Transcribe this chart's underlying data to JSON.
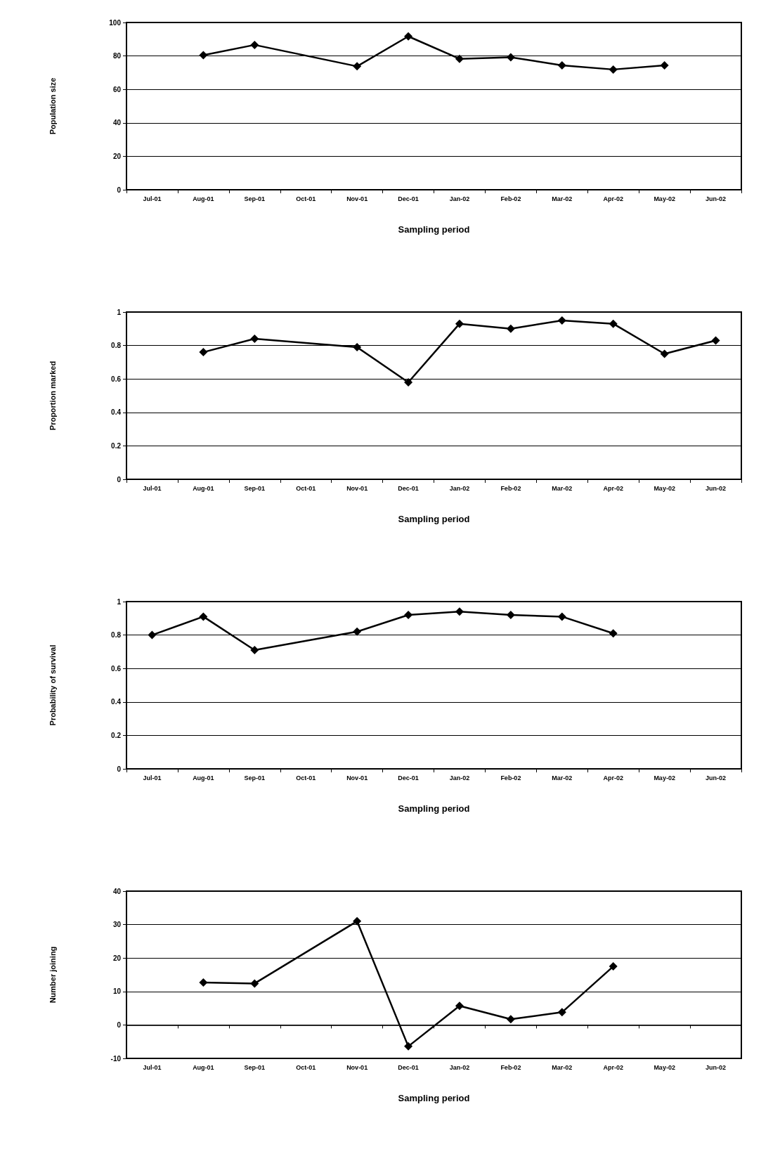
{
  "chart_data": [
    {
      "type": "line",
      "xlabel": "Sampling period",
      "ylabel": "Population size",
      "categories": [
        "Jul-01",
        "Aug-01",
        "Sep-01",
        "Oct-01",
        "Nov-01",
        "Dec-01",
        "Jan-02",
        "Feb-02",
        "Mar-02",
        "Apr-02",
        "May-02",
        "Jun-02"
      ],
      "series": [
        {
          "color": "#000000",
          "values": [
            null,
            80.5,
            86.6,
            null,
            73.8,
            91.7,
            78.3,
            79.2,
            74.4,
            71.9,
            74.4,
            null
          ]
        }
      ],
      "ylim": [
        0,
        100
      ],
      "yticks": [
        0,
        20,
        40,
        60,
        80,
        100
      ],
      "grid": "y",
      "marker": "diamond",
      "line_style": "solid"
    },
    {
      "type": "line",
      "xlabel": "Sampling period",
      "ylabel": "Proportion marked",
      "categories": [
        "Jul-01",
        "Aug-01",
        "Sep-01",
        "Oct-01",
        "Nov-01",
        "Dec-01",
        "Jan-02",
        "Feb-02",
        "Mar-02",
        "Apr-02",
        "May-02",
        "Jun-02"
      ],
      "series": [
        {
          "color": "#000000",
          "values": [
            null,
            0.76,
            0.84,
            null,
            0.79,
            0.58,
            0.93,
            0.9,
            0.95,
            0.93,
            0.75,
            0.83
          ]
        }
      ],
      "ylim": [
        0,
        1
      ],
      "yticks": [
        0,
        0.2,
        0.4,
        0.6,
        0.8,
        1
      ],
      "grid": "y",
      "marker": "diamond",
      "line_style": "solid"
    },
    {
      "type": "line",
      "xlabel": "Sampling period",
      "ylabel": "Probability of survival",
      "categories": [
        "Jul-01",
        "Aug-01",
        "Sep-01",
        "Oct-01",
        "Nov-01",
        "Dec-01",
        "Jan-02",
        "Feb-02",
        "Mar-02",
        "Apr-02",
        "May-02",
        "Jun-02"
      ],
      "series": [
        {
          "color": "#000000",
          "values": [
            0.8,
            0.91,
            0.71,
            null,
            0.82,
            0.92,
            0.94,
            0.92,
            0.91,
            0.81,
            null,
            null
          ]
        }
      ],
      "ylim": [
        0,
        1
      ],
      "yticks": [
        0,
        0.2,
        0.4,
        0.6,
        0.8,
        1
      ],
      "grid": "y",
      "marker": "diamond",
      "line_style": "solid"
    },
    {
      "type": "line",
      "xlabel": "Sampling period",
      "ylabel": "Number joining",
      "categories": [
        "Jul-01",
        "Aug-01",
        "Sep-01",
        "Oct-01",
        "Nov-01",
        "Dec-01",
        "Jan-02",
        "Feb-02",
        "Mar-02",
        "Apr-02",
        "May-02",
        "Jun-02"
      ],
      "series": [
        {
          "color": "#000000",
          "values": [
            null,
            12.7,
            12.4,
            null,
            31,
            -6.4,
            5.7,
            1.7,
            3.8,
            17.5,
            null,
            null
          ]
        }
      ],
      "ylim": [
        -10,
        40
      ],
      "yticks": [
        -10,
        0,
        10,
        20,
        30,
        40
      ],
      "grid": "y",
      "marker": "diamond",
      "line_style": "solid"
    }
  ]
}
